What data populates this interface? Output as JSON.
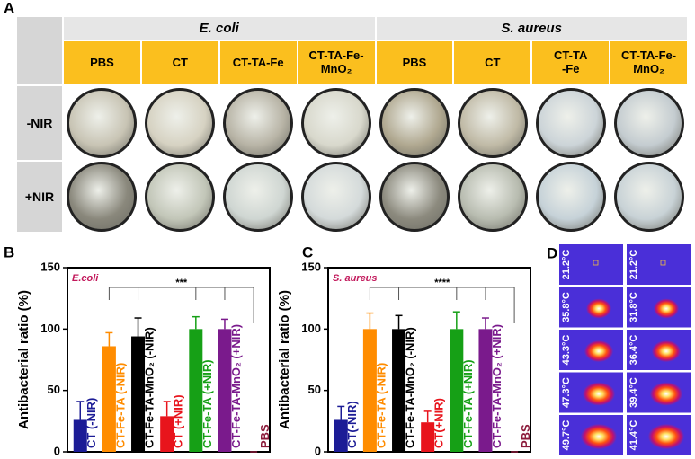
{
  "panel_a": {
    "label": "A",
    "groups": [
      "E. coli",
      "S. aureus"
    ],
    "columns": [
      "PBS",
      "CT",
      "CT-TA-Fe",
      "CT-TA-Fe-\nMnO₂",
      "PBS",
      "CT",
      "CT-TA\n-Fe",
      "CT-TA-Fe-\nMnO₂"
    ],
    "rows": [
      "-NIR",
      "+NIR"
    ]
  },
  "chart_data": [
    {
      "type": "bar",
      "label": "B",
      "annotation": "E.coli",
      "significance": "***",
      "y_label": "Antibacterial ratio (%)",
      "categories": [
        "CT (-NIR)",
        "CT-Fe-TA (-NIR)",
        "CT-Fe-TA-MnO₂ (-NIR)",
        "CT (+NIR)",
        "CT-Fe-TA (+NIR)",
        "CT-Fe-TA-MnO₂ (+NIR)",
        "PBS"
      ],
      "values": [
        26,
        86,
        94,
        29,
        100,
        100,
        0
      ],
      "errors": [
        15,
        11,
        15,
        12,
        10,
        8,
        0
      ],
      "colors": [
        "#1c1c96",
        "#ff8c00",
        "#000000",
        "#e8141c",
        "#16a016",
        "#7a1a8c",
        "#8b1a3a"
      ],
      "ylim": [
        0,
        150
      ],
      "yticks": [
        0,
        50,
        100,
        150
      ]
    },
    {
      "type": "bar",
      "label": "C",
      "annotation": "S. aureus",
      "significance": "****",
      "y_label": "Antibacterial ratio (%)",
      "categories": [
        "CT(-NIR)",
        "CT-Fe-TA (-NIR)",
        "CT-Fe-TA-MnO₂ (-NIR)",
        "CT(+NIR)",
        "CT-Fe-TA (+NIR)",
        "CT-Fe-TA-MnO₂ (+NIR)",
        "PBS"
      ],
      "values": [
        26,
        100,
        100,
        24,
        100,
        100,
        0
      ],
      "errors": [
        11,
        13,
        11,
        9,
        14,
        9,
        0
      ],
      "colors": [
        "#1c1c96",
        "#ff8c00",
        "#000000",
        "#e8141c",
        "#16a016",
        "#7a1a8c",
        "#8b1a3a"
      ],
      "ylim": [
        0,
        150
      ],
      "yticks": [
        0,
        50,
        100,
        150
      ]
    }
  ],
  "panel_d": {
    "label": "D",
    "left": [
      "21.2°C",
      "35.8°C",
      "43.3°C",
      "47.3°C",
      "49.7°C"
    ],
    "right": [
      "21.2°C",
      "31.8°C",
      "36.4°C",
      "39.4°C",
      "41.4°C"
    ]
  }
}
